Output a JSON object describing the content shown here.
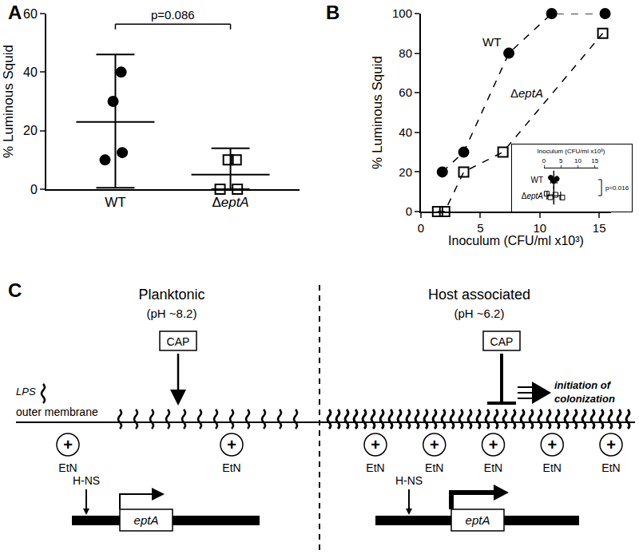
{
  "chart_data": [
    {
      "panel": "A",
      "type": "scatter",
      "ylabel": "% Luminous Squid",
      "ylim": [
        0,
        60
      ],
      "yticks": [
        0,
        20,
        40,
        60
      ],
      "series": [
        {
          "name": "WT",
          "values": [
            40,
            30,
            12.5,
            10
          ],
          "mean": 23,
          "error_plus": 23,
          "error_minus": 22.5,
          "marker": "circle",
          "color": "#000000"
        },
        {
          "name": "ΔeptA",
          "values": [
            10,
            10,
            0,
            0
          ],
          "mean": 5,
          "error_plus": 9,
          "error_minus": 5,
          "marker": "square-open",
          "color": "#000000"
        }
      ],
      "annotations": [
        {
          "text": "p=0.086"
        }
      ]
    },
    {
      "panel": "B",
      "type": "line",
      "xlabel": "Inoculum (CFU/ml x10³)",
      "ylabel": "% Luminous Squid",
      "xlim": [
        0,
        16
      ],
      "xticks": [
        0,
        5,
        10,
        15
      ],
      "ylim": [
        0,
        100
      ],
      "yticks": [
        0,
        20,
        40,
        60,
        80,
        100
      ],
      "line_style": "dashed",
      "series": [
        {
          "name": "WT",
          "x": [
            1.8,
            3.6,
            7.4,
            11,
            15.5
          ],
          "values": [
            20,
            30,
            80,
            100,
            100
          ],
          "marker": "circle",
          "color": "#000000"
        },
        {
          "name": "ΔeptA",
          "x": [
            1.4,
            2,
            3.6,
            6.9,
            15.3
          ],
          "values": [
            0,
            0,
            20,
            30,
            90
          ],
          "marker": "square-open",
          "color": "#000000"
        }
      ]
    },
    {
      "type": "scatter",
      "orientation": "horizontal",
      "xlabel": "Inoculum (CFU/ml x10³)",
      "xlim": [
        0,
        16
      ],
      "xticks": [
        0,
        5,
        10,
        15
      ],
      "series": [
        {
          "name": "WT",
          "values": [
            2,
            2.9,
            3.8
          ],
          "mean": 2.9,
          "error": 0.9,
          "marker": "circle",
          "color": "#000000"
        },
        {
          "name": "ΔeptA",
          "values": [
            0.8,
            1.9,
            3.4,
            5.4
          ],
          "mean": 2.9,
          "error": 2,
          "marker": "square-open",
          "color": "#000000"
        }
      ],
      "annotations": [
        {
          "text": "p=0.016"
        }
      ]
    }
  ],
  "diagram": {
    "panel": "C",
    "lps": "LPS",
    "membrane": "outer membrane",
    "left": {
      "title": "Planktonic",
      "subtitle": "(pH ~8.2)",
      "cap": "CAP",
      "etn": [
        "EtN",
        "EtN"
      ],
      "charge": "+",
      "repressor": "H-NS",
      "gene": "eptA"
    },
    "right": {
      "title": "Host associated",
      "subtitle": "(pH ~6.2)",
      "cap": "CAP",
      "etn": [
        "EtN",
        "EtN",
        "EtN",
        "EtN",
        "EtN"
      ],
      "charge": "+",
      "repressor": "H-NS",
      "gene": "eptA",
      "outcome": [
        "initiation of",
        "colonization"
      ]
    }
  }
}
